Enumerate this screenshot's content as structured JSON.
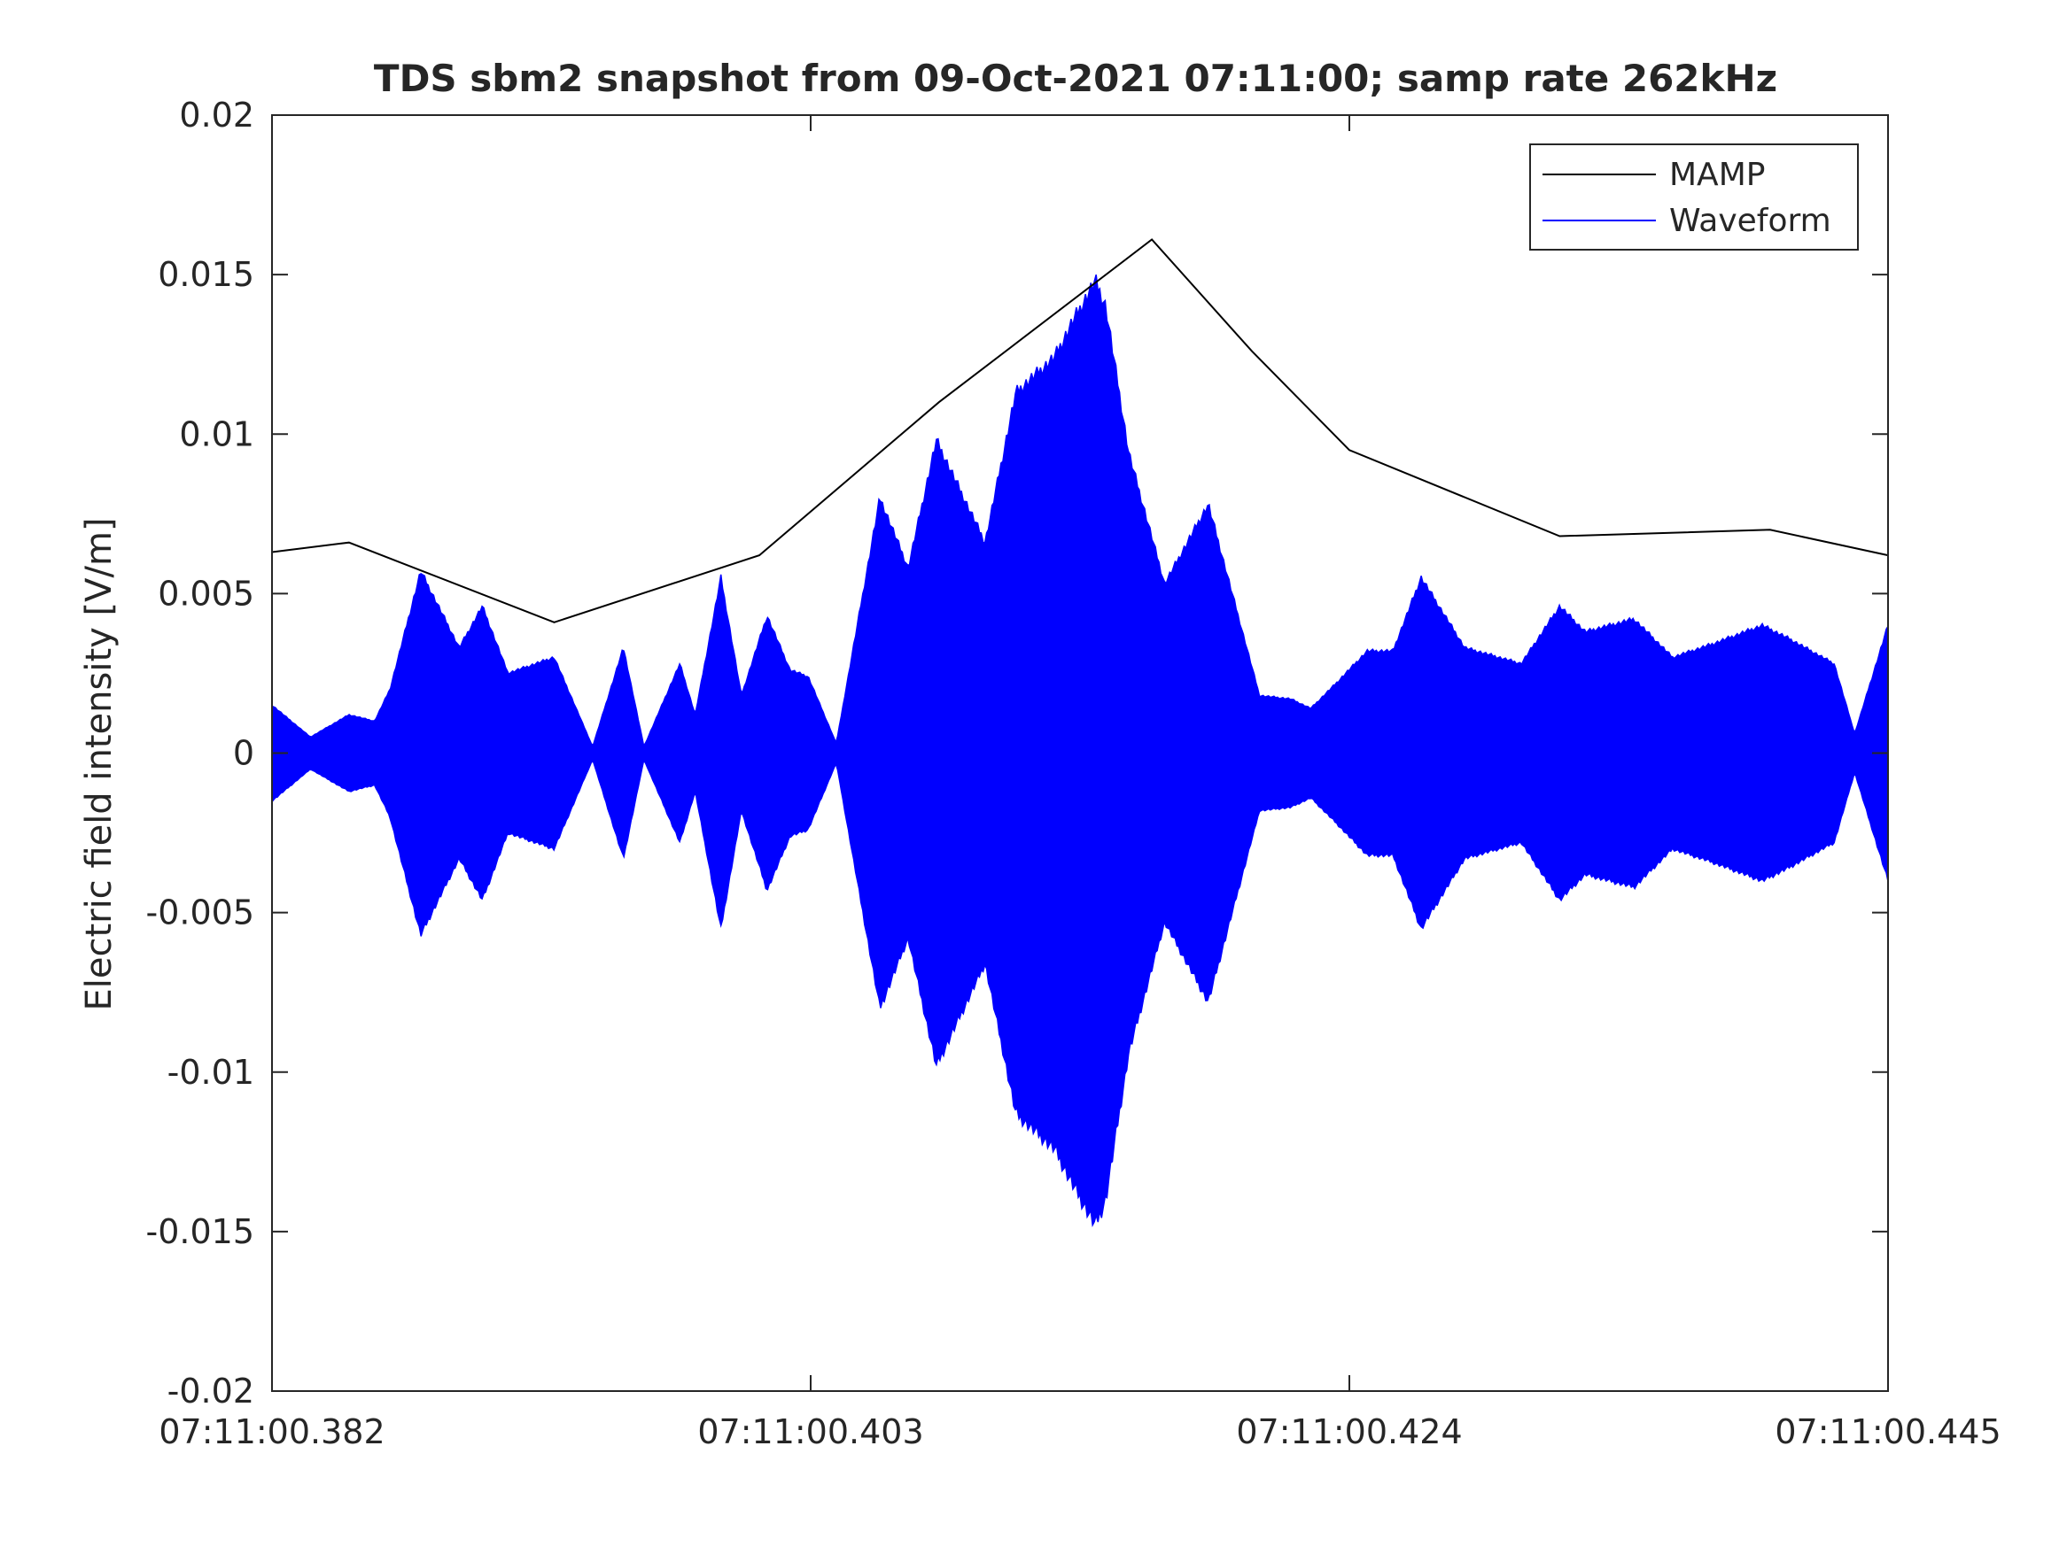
{
  "chart_data": {
    "type": "line",
    "title": "TDS sbm2 snapshot from 09-Oct-2021 07:11:00; samp rate 262kHz",
    "xlabel": "",
    "ylabel": "Electric field intensity [V/m]",
    "xlim": [
      0.382,
      0.445
    ],
    "ylim": [
      -0.02,
      0.02
    ],
    "x_ticks": [
      {
        "value": 0.382,
        "label": "07:11:00.382"
      },
      {
        "value": 0.403,
        "label": "07:11:00.403"
      },
      {
        "value": 0.424,
        "label": "07:11:00.424"
      },
      {
        "value": 0.445,
        "label": "07:11:00.445"
      }
    ],
    "y_ticks": [
      {
        "value": 0.02,
        "label": "0.02"
      },
      {
        "value": 0.015,
        "label": "0.015"
      },
      {
        "value": 0.01,
        "label": "0.01"
      },
      {
        "value": 0.005,
        "label": "0.005"
      },
      {
        "value": 0,
        "label": "0"
      },
      {
        "value": -0.005,
        "label": "-0.005"
      },
      {
        "value": -0.01,
        "label": "-0.01"
      },
      {
        "value": -0.015,
        "label": "-0.015"
      },
      {
        "value": -0.02,
        "label": "-0.02"
      }
    ],
    "grid": false,
    "legend_position": "top-right",
    "series": [
      {
        "name": "MAMP",
        "color": "#000000",
        "style": "line",
        "x": [
          0.382,
          0.385,
          0.393,
          0.401,
          0.408,
          0.4163,
          0.4202,
          0.424,
          0.4322,
          0.4404,
          0.445
        ],
        "y": [
          0.0063,
          0.0066,
          0.0041,
          0.0062,
          0.011,
          0.0161,
          0.0126,
          0.0095,
          0.0068,
          0.007,
          0.0062
        ]
      },
      {
        "name": "Waveform",
        "color": "#0000ff",
        "style": "filled-envelope",
        "x": [
          0.382,
          0.3835,
          0.385,
          0.386,
          0.3866,
          0.3878,
          0.3893,
          0.3902,
          0.3912,
          0.393,
          0.3945,
          0.3957,
          0.3965,
          0.3979,
          0.3985,
          0.3995,
          0.4003,
          0.4013,
          0.4022,
          0.4029,
          0.404,
          0.4057,
          0.4068,
          0.4079,
          0.4098,
          0.411,
          0.4125,
          0.4132,
          0.4141,
          0.4145,
          0.4154,
          0.4168,
          0.4185,
          0.4205,
          0.4217,
          0.4225,
          0.4235,
          0.4247,
          0.4257,
          0.4268,
          0.4285,
          0.4307,
          0.4322,
          0.4332,
          0.4351,
          0.4366,
          0.4381,
          0.4401,
          0.4411,
          0.4429,
          0.4437,
          0.445
        ],
        "y": [
          0.0015,
          0.0005,
          0.0012,
          0.001,
          0.002,
          0.0057,
          0.0033,
          0.0046,
          0.0025,
          0.003,
          0.0002,
          0.0033,
          0.0002,
          0.0028,
          0.0012,
          0.0055,
          0.0018,
          0.0043,
          0.0026,
          0.0024,
          0.0003,
          0.008,
          0.0058,
          0.0098,
          0.0066,
          0.0113,
          0.0124,
          0.0135,
          0.0148,
          0.014,
          0.0094,
          0.0053,
          0.0078,
          0.0018,
          0.0017,
          0.0014,
          0.0022,
          0.0032,
          0.0032,
          0.0055,
          0.0033,
          0.0028,
          0.0046,
          0.0038,
          0.0042,
          0.003,
          0.0034,
          0.004,
          0.0036,
          0.0028,
          0.0006,
          0.004
        ]
      }
    ]
  }
}
